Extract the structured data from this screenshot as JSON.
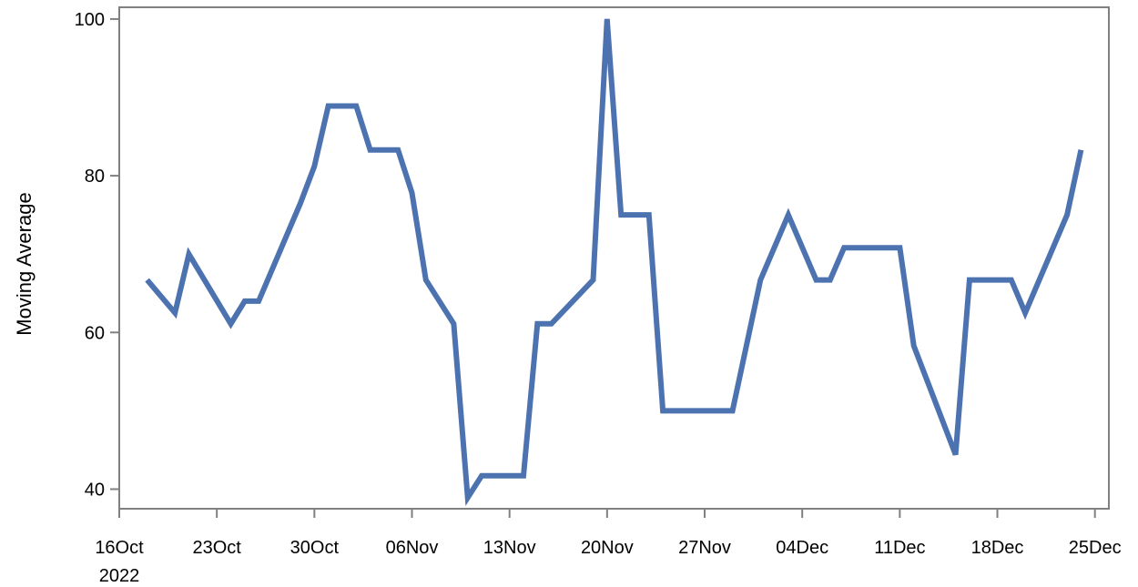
{
  "chart_data": {
    "type": "line",
    "ylabel": "Moving Average",
    "xlabel": "",
    "ylim": [
      37.5,
      101.5
    ],
    "xlim": [
      "2022-10-16",
      "2022-12-26"
    ],
    "grid": false,
    "line_color": "#4c72b0",
    "axis_color": "#808080",
    "y_ticks": [
      "40",
      "60",
      "80",
      "100"
    ],
    "x_ticks": [
      {
        "date": "2022-10-16",
        "label": "16Oct",
        "sublabel": "2022"
      },
      {
        "date": "2022-10-23",
        "label": "23Oct"
      },
      {
        "date": "2022-10-30",
        "label": "30Oct"
      },
      {
        "date": "2022-11-06",
        "label": "06Nov"
      },
      {
        "date": "2022-11-13",
        "label": "13Nov"
      },
      {
        "date": "2022-11-20",
        "label": "20Nov"
      },
      {
        "date": "2022-11-27",
        "label": "27Nov"
      },
      {
        "date": "2022-12-04",
        "label": "04Dec"
      },
      {
        "date": "2022-12-11",
        "label": "11Dec"
      },
      {
        "date": "2022-12-18",
        "label": "18Dec"
      },
      {
        "date": "2022-12-25",
        "label": "25Dec"
      }
    ],
    "series": [
      {
        "points": [
          {
            "x": "2022-10-18",
            "y": 66.7
          },
          {
            "x": "2022-10-20",
            "y": 62.5
          },
          {
            "x": "2022-10-21",
            "y": 70.0
          },
          {
            "x": "2022-10-24",
            "y": 61.1
          },
          {
            "x": "2022-10-25",
            "y": 64.0
          },
          {
            "x": "2022-10-26",
            "y": 64.0
          },
          {
            "x": "2022-10-29",
            "y": 76.5
          },
          {
            "x": "2022-10-30",
            "y": 81.2
          },
          {
            "x": "2022-10-31",
            "y": 88.9
          },
          {
            "x": "2022-11-02",
            "y": 88.9
          },
          {
            "x": "2022-11-03",
            "y": 83.3
          },
          {
            "x": "2022-11-05",
            "y": 83.3
          },
          {
            "x": "2022-11-06",
            "y": 77.8
          },
          {
            "x": "2022-11-07",
            "y": 66.7
          },
          {
            "x": "2022-11-09",
            "y": 61.1
          },
          {
            "x": "2022-11-10",
            "y": 38.9
          },
          {
            "x": "2022-11-11",
            "y": 41.7
          },
          {
            "x": "2022-11-14",
            "y": 41.7
          },
          {
            "x": "2022-11-15",
            "y": 61.1
          },
          {
            "x": "2022-11-16",
            "y": 61.1
          },
          {
            "x": "2022-11-19",
            "y": 66.7
          },
          {
            "x": "2022-11-20",
            "y": 100.0
          },
          {
            "x": "2022-11-21",
            "y": 75.0
          },
          {
            "x": "2022-11-23",
            "y": 75.0
          },
          {
            "x": "2022-11-24",
            "y": 50.0
          },
          {
            "x": "2022-11-29",
            "y": 50.0
          },
          {
            "x": "2022-12-01",
            "y": 66.7
          },
          {
            "x": "2022-12-03",
            "y": 75.0
          },
          {
            "x": "2022-12-05",
            "y": 66.7
          },
          {
            "x": "2022-12-06",
            "y": 66.7
          },
          {
            "x": "2022-12-07",
            "y": 70.8
          },
          {
            "x": "2022-12-11",
            "y": 70.8
          },
          {
            "x": "2022-12-12",
            "y": 58.3
          },
          {
            "x": "2022-12-15",
            "y": 44.4
          },
          {
            "x": "2022-12-16",
            "y": 66.7
          },
          {
            "x": "2022-12-19",
            "y": 66.7
          },
          {
            "x": "2022-12-20",
            "y": 62.5
          },
          {
            "x": "2022-12-23",
            "y": 75.0
          },
          {
            "x": "2022-12-24",
            "y": 83.3
          }
        ]
      }
    ]
  }
}
